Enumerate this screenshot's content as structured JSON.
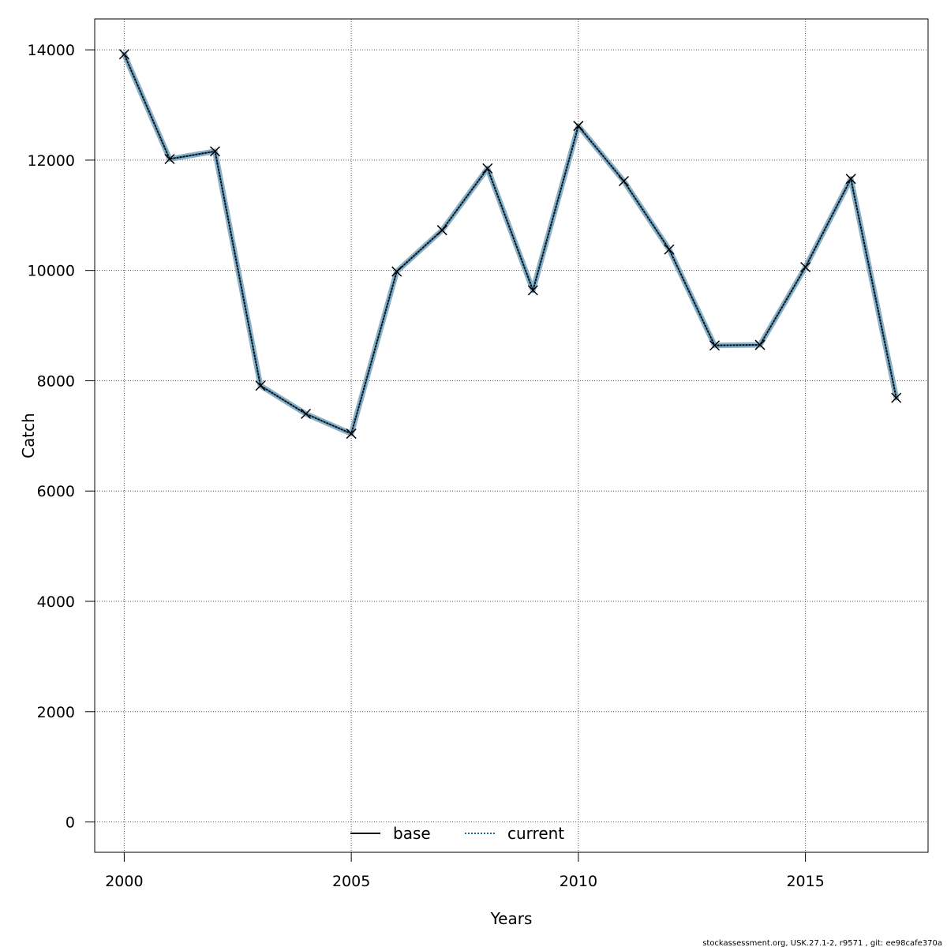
{
  "chart_data": {
    "type": "line",
    "title": "",
    "xlabel": "Years",
    "ylabel": "Catch",
    "xlim": [
      1999.35,
      2017.7
    ],
    "ylim": [
      -550,
      14560
    ],
    "x_ticks": [
      2000,
      2005,
      2010,
      2015
    ],
    "y_ticks": [
      0,
      2000,
      4000,
      6000,
      8000,
      10000,
      12000,
      14000
    ],
    "grid": true,
    "legend_position": "bottom-center",
    "x": [
      2000,
      2001,
      2002,
      2003,
      2004,
      2005,
      2006,
      2007,
      2008,
      2009,
      2010,
      2011,
      2012,
      2013,
      2014,
      2015,
      2016,
      2017
    ],
    "series": [
      {
        "name": "base",
        "color": "#000000",
        "line_style": "solid",
        "values": [
          13920,
          12020,
          12160,
          7910,
          7400,
          7040,
          9980,
          10730,
          11850,
          9640,
          12620,
          11620,
          10380,
          8640,
          8650,
          10060,
          11660,
          7690
        ]
      },
      {
        "name": "current",
        "color": "#1f6a9a",
        "line_style": "dotted",
        "values": [
          13920,
          12020,
          12160,
          7910,
          7400,
          7040,
          9980,
          10730,
          11850,
          9640,
          12620,
          11620,
          10380,
          8640,
          8650,
          10060,
          11660,
          7690
        ]
      }
    ],
    "band_color": "#8fb1c4",
    "marker": "x"
  },
  "footer_text": "stockassessment.org, USK.27.1-2, r9571 , git: ee98cafe370a"
}
